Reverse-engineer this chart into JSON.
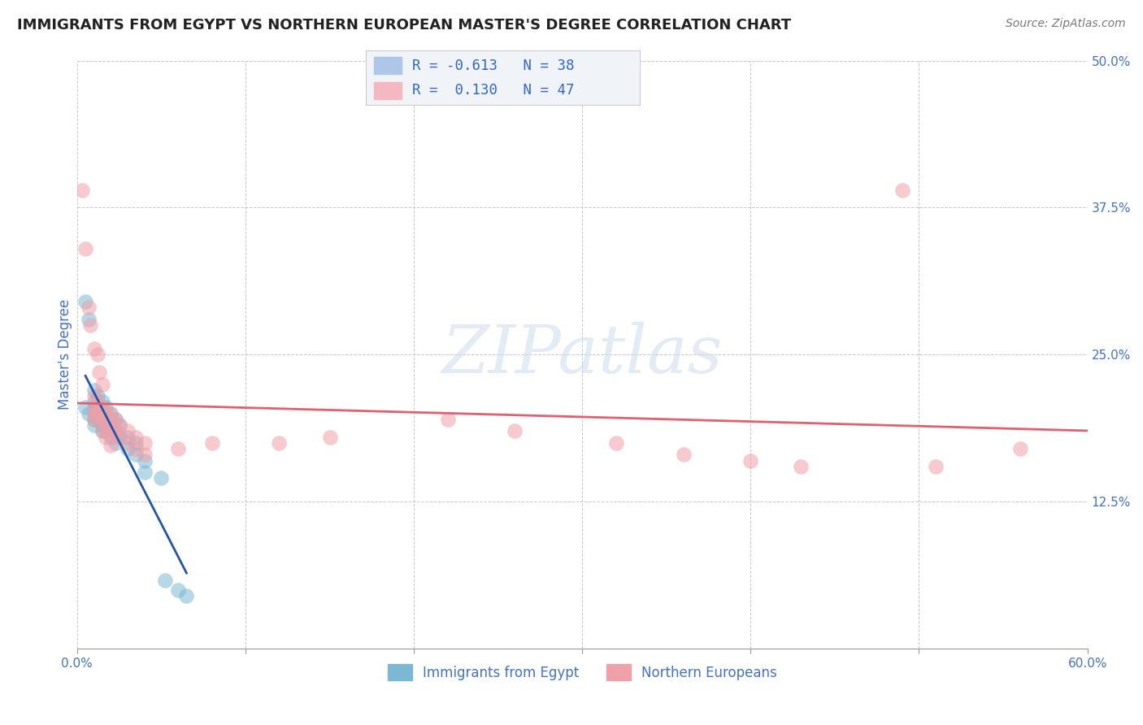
{
  "title": "IMMIGRANTS FROM EGYPT VS NORTHERN EUROPEAN MASTER'S DEGREE CORRELATION CHART",
  "source": "Source: ZipAtlas.com",
  "ylabel": "Master's Degree",
  "xlim": [
    0.0,
    0.6
  ],
  "ylim": [
    0.0,
    0.5
  ],
  "xticks": [
    0.0,
    0.1,
    0.2,
    0.3,
    0.4,
    0.5,
    0.6
  ],
  "xticklabels_show": [
    "0.0%",
    "",
    "",
    "",
    "",
    "",
    "60.0%"
  ],
  "yticks": [
    0.0,
    0.125,
    0.25,
    0.375,
    0.5
  ],
  "yticklabels": [
    "",
    "12.5%",
    "25.0%",
    "37.5%",
    "50.0%"
  ],
  "legend_label1": "Immigrants from Egypt",
  "legend_label2": "Northern Europeans",
  "egypt_color": "#7bb8d4",
  "northern_color": "#f0a0a8",
  "egypt_line_color": "#2255aa",
  "northern_line_color": "#e06070",
  "watermark_text": "ZIPatlas",
  "background_color": "#ffffff",
  "grid_color": "#bbbbbb",
  "axis_color": "#4472c4",
  "title_fontsize": 13,
  "source_fontsize": 10,
  "egypt_scatter": [
    [
      0.005,
      0.295
    ],
    [
      0.007,
      0.28
    ],
    [
      0.005,
      0.205
    ],
    [
      0.007,
      0.2
    ],
    [
      0.01,
      0.22
    ],
    [
      0.01,
      0.21
    ],
    [
      0.01,
      0.205
    ],
    [
      0.01,
      0.2
    ],
    [
      0.01,
      0.195
    ],
    [
      0.01,
      0.19
    ],
    [
      0.012,
      0.215
    ],
    [
      0.012,
      0.205
    ],
    [
      0.012,
      0.195
    ],
    [
      0.015,
      0.21
    ],
    [
      0.015,
      0.2
    ],
    [
      0.015,
      0.19
    ],
    [
      0.015,
      0.185
    ],
    [
      0.017,
      0.205
    ],
    [
      0.017,
      0.195
    ],
    [
      0.017,
      0.185
    ],
    [
      0.02,
      0.2
    ],
    [
      0.02,
      0.19
    ],
    [
      0.02,
      0.18
    ],
    [
      0.023,
      0.195
    ],
    [
      0.023,
      0.185
    ],
    [
      0.023,
      0.175
    ],
    [
      0.025,
      0.19
    ],
    [
      0.025,
      0.18
    ],
    [
      0.03,
      0.18
    ],
    [
      0.03,
      0.17
    ],
    [
      0.035,
      0.175
    ],
    [
      0.035,
      0.165
    ],
    [
      0.04,
      0.16
    ],
    [
      0.04,
      0.15
    ],
    [
      0.05,
      0.145
    ],
    [
      0.052,
      0.058
    ],
    [
      0.06,
      0.05
    ],
    [
      0.065,
      0.045
    ]
  ],
  "northern_scatter": [
    [
      0.003,
      0.39
    ],
    [
      0.005,
      0.34
    ],
    [
      0.007,
      0.29
    ],
    [
      0.008,
      0.275
    ],
    [
      0.01,
      0.255
    ],
    [
      0.012,
      0.25
    ],
    [
      0.013,
      0.235
    ],
    [
      0.015,
      0.225
    ],
    [
      0.01,
      0.215
    ],
    [
      0.01,
      0.205
    ],
    [
      0.01,
      0.2
    ],
    [
      0.01,
      0.195
    ],
    [
      0.012,
      0.21
    ],
    [
      0.012,
      0.2
    ],
    [
      0.015,
      0.205
    ],
    [
      0.015,
      0.195
    ],
    [
      0.015,
      0.185
    ],
    [
      0.017,
      0.2
    ],
    [
      0.017,
      0.19
    ],
    [
      0.017,
      0.18
    ],
    [
      0.02,
      0.2
    ],
    [
      0.02,
      0.19
    ],
    [
      0.02,
      0.182
    ],
    [
      0.02,
      0.173
    ],
    [
      0.023,
      0.195
    ],
    [
      0.023,
      0.185
    ],
    [
      0.025,
      0.19
    ],
    [
      0.025,
      0.18
    ],
    [
      0.03,
      0.185
    ],
    [
      0.03,
      0.175
    ],
    [
      0.035,
      0.18
    ],
    [
      0.035,
      0.17
    ],
    [
      0.04,
      0.175
    ],
    [
      0.04,
      0.165
    ],
    [
      0.06,
      0.17
    ],
    [
      0.08,
      0.175
    ],
    [
      0.12,
      0.175
    ],
    [
      0.15,
      0.18
    ],
    [
      0.22,
      0.195
    ],
    [
      0.26,
      0.185
    ],
    [
      0.32,
      0.175
    ],
    [
      0.36,
      0.165
    ],
    [
      0.4,
      0.16
    ],
    [
      0.43,
      0.155
    ],
    [
      0.49,
      0.39
    ],
    [
      0.51,
      0.155
    ],
    [
      0.56,
      0.17
    ]
  ]
}
